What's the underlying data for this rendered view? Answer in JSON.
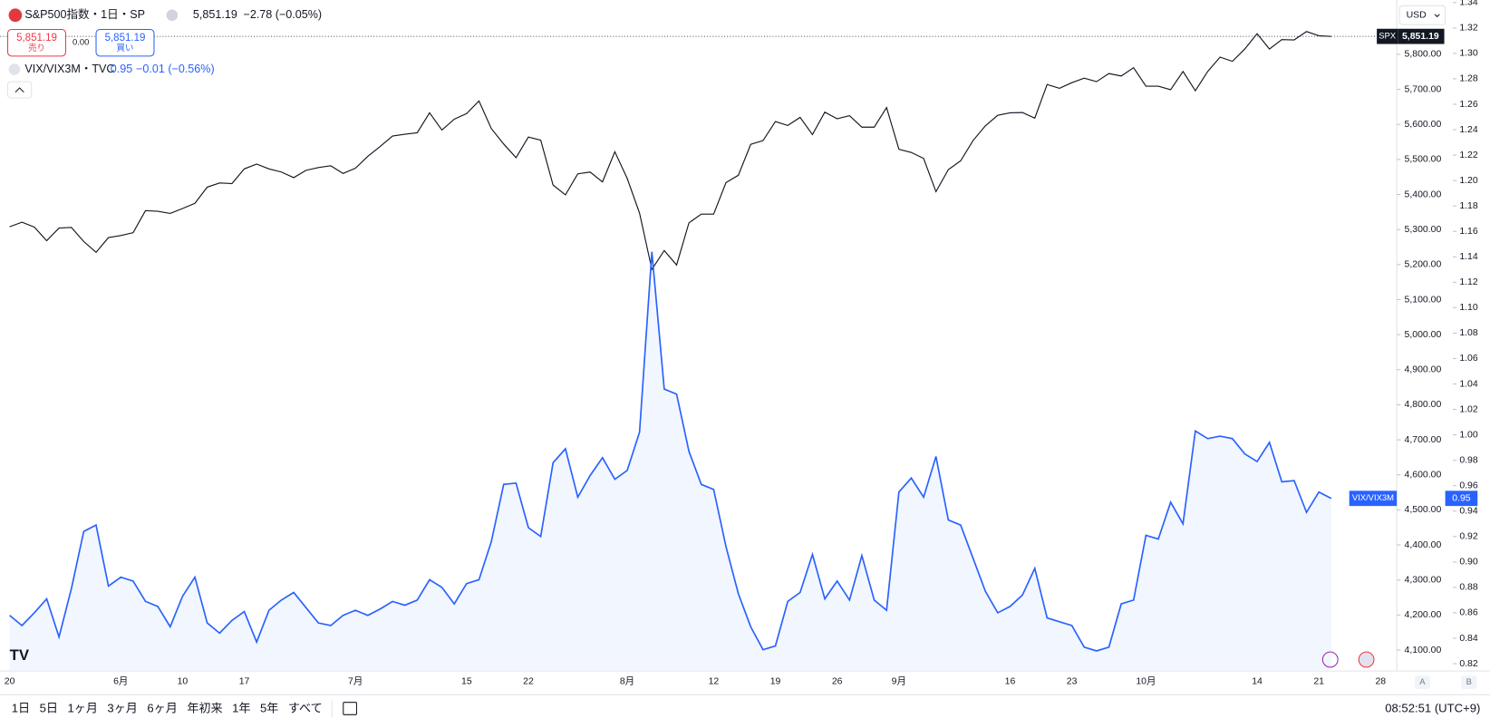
{
  "header": {
    "symbol": "S&P500指数・1日・SP",
    "price": "5,851.19",
    "change": "−2.78 (−0.05%)",
    "sell_price": "5,851.19",
    "sell": "売り",
    "spread": "0.00",
    "buy_price": "5,851.19",
    "buy": "買い",
    "compare_symbol": "VIX/VIX3M・TVC",
    "compare_price": "0.95",
    "compare_change": "−0.01 (−0.56%)"
  },
  "currency": "USD",
  "chart_data": {
    "type": "line",
    "categories": [
      "20",
      null,
      null,
      null,
      null,
      null,
      null,
      null,
      null,
      "6月",
      null,
      null,
      null,
      null,
      "10",
      null,
      null,
      null,
      null,
      "17",
      null,
      null,
      null,
      null,
      null,
      null,
      null,
      null,
      "7月",
      null,
      null,
      null,
      null,
      null,
      null,
      null,
      null,
      "15",
      null,
      null,
      null,
      null,
      "22",
      null,
      null,
      null,
      null,
      null,
      null,
      null,
      "8月",
      null,
      null,
      null,
      null,
      null,
      null,
      "12",
      null,
      null,
      null,
      null,
      "19",
      null,
      null,
      null,
      null,
      "26",
      null,
      null,
      null,
      null,
      "9月",
      null,
      null,
      null,
      null,
      null,
      null,
      null,
      null,
      "16",
      null,
      null,
      null,
      null,
      "23",
      null,
      null,
      null,
      null,
      null,
      "10月",
      null,
      null,
      null,
      null,
      null,
      null,
      null,
      null,
      "14",
      null,
      null,
      null,
      null,
      "21",
      null,
      null,
      null,
      null,
      "28"
    ],
    "series": [
      {
        "name": "SPX",
        "color": "#131722",
        "last_label": "5,851.19",
        "values": [
          5308,
          5321,
          5307,
          5268,
          5304,
          5306,
          5266,
          5235,
          5277,
          5283,
          5291,
          5354,
          5352,
          5346,
          5360,
          5375,
          5421,
          5433,
          5431,
          5473,
          5487,
          5473,
          5464,
          5448,
          5469,
          5477,
          5482,
          5460,
          5475,
          5509,
          5537,
          5567,
          5572,
          5576,
          5633,
          5584,
          5615,
          5631,
          5667,
          5588,
          5544,
          5505,
          5564,
          5555,
          5427,
          5399,
          5459,
          5464,
          5436,
          5522,
          5446,
          5347,
          5186,
          5240,
          5199,
          5319,
          5344,
          5344,
          5434,
          5455,
          5543,
          5554,
          5608,
          5597,
          5620,
          5571,
          5635,
          5616,
          5625,
          5592,
          5592,
          5648,
          5529,
          5520,
          5503,
          5408,
          5471,
          5496,
          5554,
          5596,
          5626,
          5633,
          5634,
          5618,
          5714,
          5703,
          5719,
          5732,
          5722,
          5745,
          5738,
          5762,
          5709,
          5709,
          5699,
          5751,
          5696,
          5751,
          5792,
          5780,
          5815,
          5859,
          5815,
          5842,
          5841,
          5865,
          5853,
          5851.19,
          null,
          null,
          null,
          null
        ]
      },
      {
        "name": "VIX/VIX3M",
        "color": "#2962ff",
        "axis": "y2",
        "last_label": "0.95",
        "values": [
          0.858,
          0.85,
          0.86,
          0.871,
          0.841,
          0.879,
          0.924,
          0.929,
          0.881,
          0.888,
          0.885,
          0.869,
          0.865,
          0.849,
          0.873,
          0.888,
          0.852,
          0.844,
          0.854,
          0.861,
          0.837,
          0.862,
          0.87,
          0.876,
          0.864,
          0.852,
          0.85,
          0.858,
          0.862,
          0.858,
          0.863,
          0.869,
          0.866,
          0.87,
          0.886,
          0.88,
          0.867,
          0.883,
          0.886,
          0.916,
          0.961,
          0.962,
          0.927,
          0.92,
          0.978,
          0.989,
          0.951,
          0.968,
          0.982,
          0.965,
          0.972,
          1.002,
          1.144,
          1.036,
          1.032,
          0.987,
          0.961,
          0.957,
          0.912,
          0.875,
          0.849,
          0.831,
          0.834,
          0.869,
          0.876,
          0.906,
          0.871,
          0.885,
          0.87,
          0.905,
          0.87,
          0.862,
          0.955,
          0.966,
          0.951,
          0.983,
          0.933,
          0.929,
          0.903,
          0.877,
          0.86,
          0.865,
          0.874,
          0.895,
          0.856,
          0.853,
          0.85,
          0.833,
          0.83,
          0.833,
          0.867,
          0.87,
          0.921,
          0.918,
          0.947,
          0.93,
          1.003,
          0.997,
          0.999,
          0.997,
          0.985,
          0.979,
          0.994,
          0.963,
          0.964,
          0.939,
          0.955,
          0.95,
          null,
          null,
          null,
          null
        ]
      }
    ],
    "ylim": [
      4043,
      5955
    ],
    "yticks": [
      {
        "value": 4100,
        "label": "4,100.00"
      },
      {
        "value": 4200,
        "label": "4,200.00"
      },
      {
        "value": 4300,
        "label": "4,300.00"
      },
      {
        "value": 4400,
        "label": "4,400.00"
      },
      {
        "value": 4500,
        "label": "4,500.00"
      },
      {
        "value": 4600,
        "label": "4,600.00"
      },
      {
        "value": 4700,
        "label": "4,700.00"
      },
      {
        "value": 4800,
        "label": "4,800.00"
      },
      {
        "value": 4900,
        "label": "4,900.00"
      },
      {
        "value": 5000,
        "label": "5,000.00"
      },
      {
        "value": 5100,
        "label": "5,100.00"
      },
      {
        "value": 5200,
        "label": "5,200.00"
      },
      {
        "value": 5300,
        "label": "5,300.00"
      },
      {
        "value": 5400,
        "label": "5,400.00"
      },
      {
        "value": 5500,
        "label": "5,500.00"
      },
      {
        "value": 5600,
        "label": "5,600.00"
      },
      {
        "value": 5700,
        "label": "5,700.00"
      },
      {
        "value": 5800,
        "label": "5,800.00"
      }
    ],
    "y2lim": [
      0.815,
      1.342
    ],
    "y2ticks": [
      0.82,
      0.84,
      0.86,
      0.88,
      {
        "value": 0.9,
        "label": "0.90"
      },
      0.92,
      0.94,
      0.96,
      0.98,
      {
        "value": 1,
        "label": "1.00"
      },
      1.02,
      1.04,
      1.06,
      1.08,
      {
        "value": 1.1,
        "label": "1.10"
      },
      1.12,
      1.14,
      1.16,
      1.18,
      {
        "value": 1.2,
        "label": "1.20"
      },
      1.22,
      1.24,
      1.26,
      1.28,
      {
        "value": 1.3,
        "label": "1.30"
      },
      1.32,
      1.34
    ],
    "grid": false
  },
  "range_buttons": [
    "1日",
    "5日",
    "1ヶ月",
    "3ヶ月",
    "6ヶ月",
    "年初来",
    "1年",
    "5年",
    "すべて"
  ],
  "axis_buttons": [
    "A",
    "B"
  ],
  "clock": "08:52:51 (UTC+9)"
}
